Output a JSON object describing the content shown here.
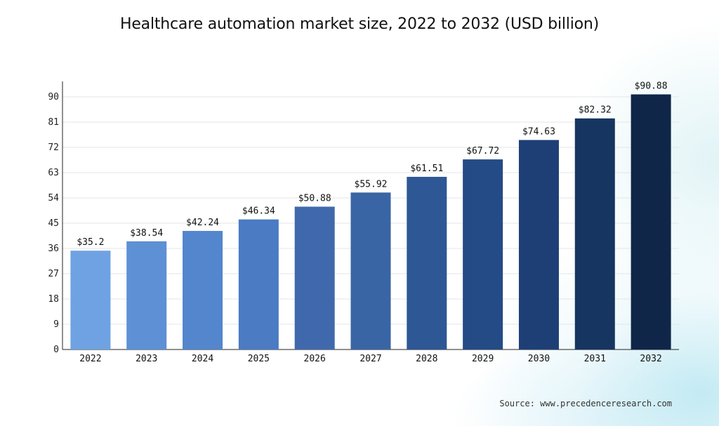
{
  "chart_data": {
    "type": "bar",
    "title": "Healthcare automation market size, 2022 to 2032 (USD billion)",
    "xlabel": "",
    "ylabel": "",
    "categories": [
      "2022",
      "2023",
      "2024",
      "2025",
      "2026",
      "2027",
      "2028",
      "2029",
      "2030",
      "2031",
      "2032"
    ],
    "values": [
      35.2,
      38.54,
      42.24,
      46.34,
      50.88,
      55.92,
      61.51,
      67.72,
      74.63,
      82.32,
      90.88
    ],
    "data_labels": [
      "$35.2",
      "$38.54",
      "$42.24",
      "$46.34",
      "$50.88",
      "$55.92",
      "$61.51",
      "$67.72",
      "$74.63",
      "$82.32",
      "$90.88"
    ],
    "ylim": [
      0,
      90
    ],
    "yticks": [
      0,
      9,
      18,
      27,
      36,
      45,
      54,
      63,
      72,
      81,
      90
    ],
    "grid": true,
    "bar_colors": [
      "#6fa2e2",
      "#5d90d5",
      "#5386cc",
      "#4a7bc3",
      "#4069ad",
      "#3a65a5",
      "#2e5795",
      "#244b85",
      "#1d3f75",
      "#163560",
      "#0f2649"
    ]
  },
  "source": {
    "label": "Source:",
    "url": "www.precedenceresearch.com"
  }
}
